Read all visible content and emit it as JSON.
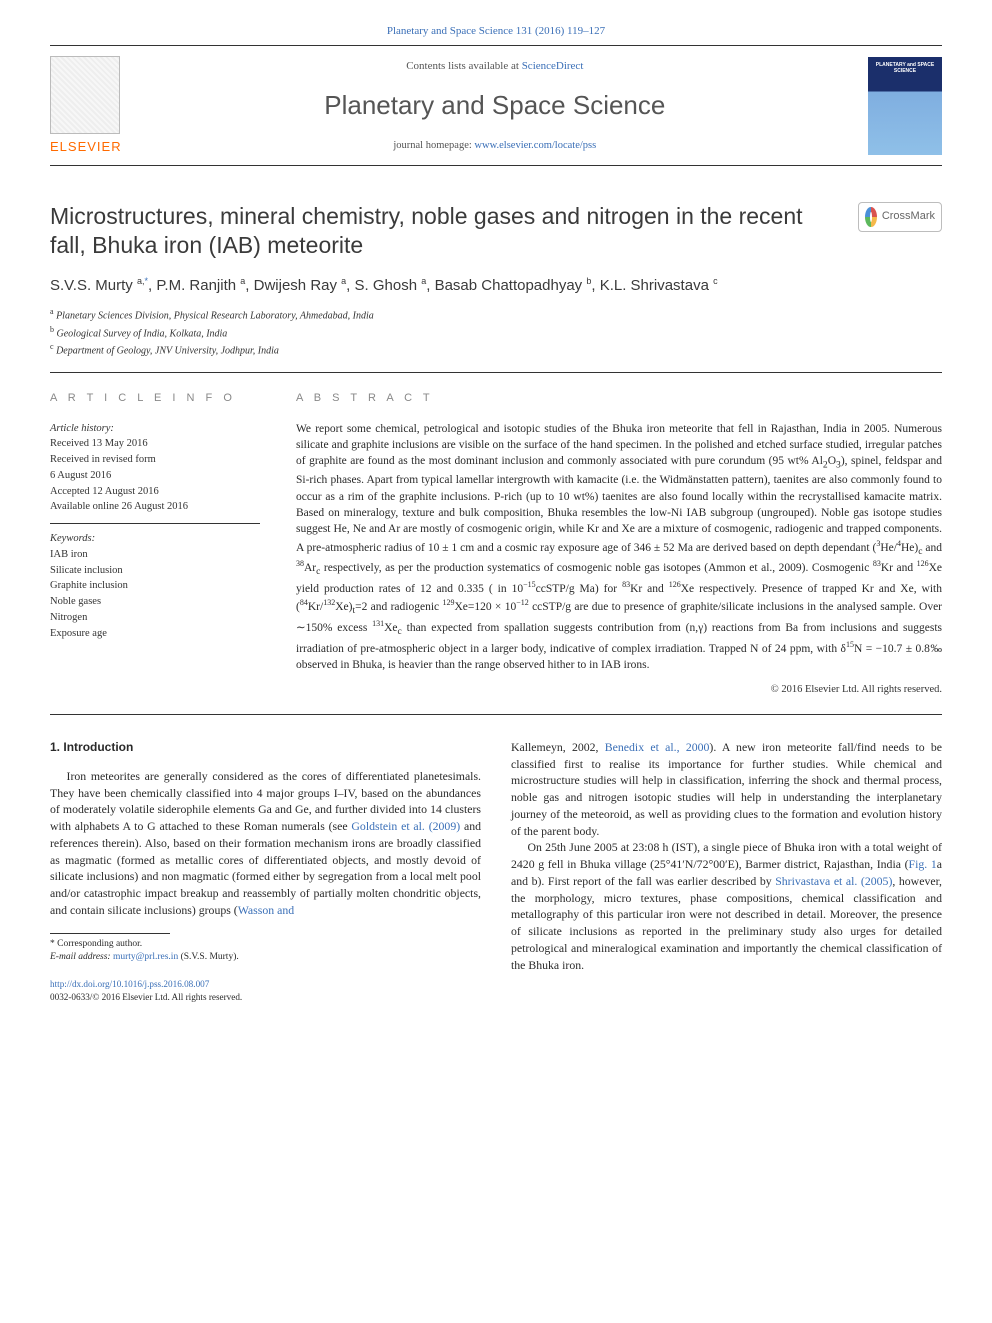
{
  "top_link": {
    "label": "Planetary and Space Science 131 (2016) 119–127",
    "href": "#"
  },
  "masthead": {
    "contents_prefix": "Contents lists available at ",
    "contents_link": "ScienceDirect",
    "journal": "Planetary and Space Science",
    "homepage_prefix": "journal homepage: ",
    "homepage_link": "www.elsevier.com/locate/pss",
    "publisher": "ELSEVIER",
    "cover_text": "PLANETARY and SPACE SCIENCE"
  },
  "colors": {
    "link": "#3a6fb7",
    "publisher_orange": "#ff6a00",
    "text": "#2a2a2a",
    "muted": "#888888"
  },
  "article": {
    "title": "Microstructures, mineral chemistry, noble gases and nitrogen in the recent fall, Bhuka iron (IAB) meteorite",
    "crossmark": "CrossMark",
    "authors_html": "S.V.S. Murty <sup>a,</sup><span class='corr'><sup>*</sup></span>, P.M. Ranjith <sup>a</sup>, Dwijesh Ray <sup>a</sup>, S. Ghosh <sup>a</sup>, Basab Chattopadhyay <sup>b</sup>, K.L. Shrivastava <sup>c</sup>",
    "affiliations": [
      {
        "sup": "a",
        "text": "Planetary Sciences Division, Physical Research Laboratory, Ahmedabad, India"
      },
      {
        "sup": "b",
        "text": "Geological Survey of India, Kolkata, India"
      },
      {
        "sup": "c",
        "text": "Department of Geology, JNV University, Jodhpur, India"
      }
    ]
  },
  "info": {
    "heading": "A R T I C L E  I N F O",
    "history_label": "Article history:",
    "history": [
      "Received 13 May 2016",
      "Received in revised form",
      "6 August 2016",
      "Accepted 12 August 2016",
      "Available online 26 August 2016"
    ],
    "keywords_label": "Keywords:",
    "keywords": [
      "IAB iron",
      "Silicate inclusion",
      "Graphite inclusion",
      "Noble gases",
      "Nitrogen",
      "Exposure age"
    ]
  },
  "abstract": {
    "heading": "A B S T R A C T",
    "text_html": "We report some chemical, petrological and isotopic studies of the Bhuka iron meteorite that fell in Rajasthan, India in 2005. Numerous silicate and graphite inclusions are visible on the surface of the hand specimen. In the polished and etched surface studied, irregular patches of graphite are found as the most dominant inclusion and commonly associated with pure corundum (95 wt% Al<sub>2</sub>O<sub>3</sub>), spinel, feldspar and Si-rich phases. Apart from typical lamellar intergrowth with kamacite (i.e. the Widmänstatten pattern), taenites are also commonly found to occur as a rim of the graphite inclusions. P-rich (up to 10 wt%) taenites are also found locally within the recrystallised kamacite matrix. Based on mineralogy, texture and bulk composition, Bhuka resembles the low-Ni IAB subgroup (ungrouped). Noble gas isotope studies suggest He, Ne and Ar are mostly of cosmogenic origin, while Kr and Xe are a mixture of cosmogenic, radiogenic and trapped components. A pre-atmospheric radius of 10 ± 1 cm and a cosmic ray exposure age of 346 ± 52 Ma are derived based on depth dependant (<sup>3</sup>He/<sup>4</sup>He)<sub>c</sub> and <sup>38</sup>Ar<sub>c</sub> respectively, as per the production systematics of cosmogenic noble gas isotopes (Ammon et al., 2009). Cosmogenic <sup>83</sup>Kr and <sup>126</sup>Xe yield production rates of 12 and 0.335 ( in 10<sup>−15</sup>ccSTP/g Ma) for <sup>83</sup>Kr and <sup>126</sup>Xe respectively. Presence of trapped Kr and Xe, with (<sup>84</sup>Kr/<sup>132</sup>Xe)<sub>t</sub>=2 and radiogenic <sup>129</sup>Xe=120 × 10<sup>−12</sup> ccSTP/g are due to presence of graphite/silicate inclusions in the analysed sample. Over ∼150% excess <sup>131</sup>Xe<sub>c</sub> than expected from spallation suggests contribution from (n,γ) reactions from Ba from inclusions and suggests irradiation of pre-atmospheric object in a larger body, indicative of complex irradiation. Trapped N of 24 ppm, with δ<sup>15</sup>N = −10.7 ± 0.8‰ observed in Bhuka, is heavier than the range observed hither to in IAB irons.",
    "copyright": "© 2016 Elsevier Ltd. All rights reserved."
  },
  "body": {
    "section_no": "1.",
    "section_title": "Introduction",
    "col1_p1_html": "Iron meteorites are generally considered as the cores of differentiated planetesimals. They have been chemically classified into 4 major groups I–IV, based on the abundances of moderately volatile siderophile elements Ga and Ge, and further divided into 14 clusters with alphabets A to G attached to these Roman numerals (see <a href='#'>Goldstein et al. (2009)</a> and references therein). Also, based on their formation mechanism irons are broadly classified as magmatic (formed as metallic cores of differentiated objects, and mostly devoid of silicate inclusions) and non magmatic (formed either by segregation from a local melt pool and/or catastrophic impact breakup and reassembly of partially molten chondritic objects, and contain silicate inclusions) groups (<a href='#'>Wasson and",
    "col2_cont_html": "Kallemeyn, 2002</a>, <a href='#'>Benedix et al., 2000</a>). A new iron meteorite fall/find needs to be classified first to realise its importance for further studies. While chemical and microstructure studies will help in classification, inferring the shock and thermal process, noble gas and nitrogen isotopic studies will help in understanding the interplanetary journey of the meteoroid, as well as providing clues to the formation and evolution history of the parent body.",
    "col2_p2_html": "On 25th June 2005 at 23:08 h (IST), a single piece of Bhuka iron with a total weight of 2420 g fell in Bhuka village (25°41′N/72°00′E), Barmer district, Rajasthan, India (<a href='#'>Fig. 1</a>a and b). First report of the fall was earlier described by <a href='#'>Shrivastava et al. (2005)</a>, however, the morphology, micro textures, phase compositions, chemical classification and metallography of this particular iron were not described in detail. Moreover, the presence of silicate inclusions as reported in the preliminary study also urges for detailed petrological and mineralogical examination and importantly the chemical classification of the Bhuka iron."
  },
  "footnotes": {
    "corr_label": "* Corresponding author.",
    "email_label": "E-mail address:",
    "email": "murty@prl.res.in",
    "email_paren": "(S.V.S. Murty)."
  },
  "bottom": {
    "doi": "http://dx.doi.org/10.1016/j.pss.2016.08.007",
    "issn_line": "0032-0633/© 2016 Elsevier Ltd. All rights reserved."
  }
}
